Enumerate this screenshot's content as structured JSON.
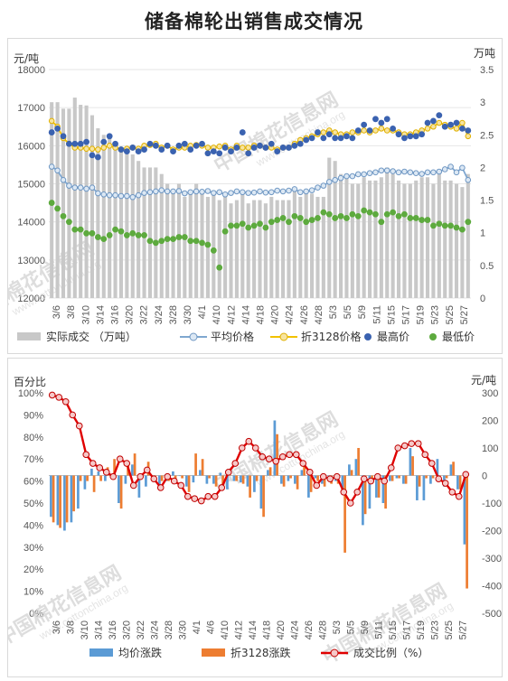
{
  "title": "储备棉轮出销售成交情况",
  "watermark": {
    "cn": "中国棉花信息网",
    "url": "www.cottonchina.org"
  },
  "chart_data": [
    {
      "type": "bar+line",
      "left_unit": "元/吨",
      "right_unit": "万吨",
      "ylim_left": [
        12000,
        18000
      ],
      "ylim_right": [
        0,
        3.5
      ],
      "left_ticks": [
        12000,
        13000,
        14000,
        15000,
        16000,
        17000,
        18000
      ],
      "right_ticks": [
        0,
        0.5,
        1,
        1.5,
        2,
        2.5,
        3,
        3.5
      ],
      "x_ticks": [
        "3/6",
        "3/8",
        "3/10",
        "3/14",
        "3/16",
        "3/20",
        "3/22",
        "3/24",
        "3/28",
        "3/30",
        "4/1",
        "4/10",
        "4/12",
        "4/14",
        "4/18",
        "4/20",
        "4/24",
        "4/26",
        "4/28",
        "5/3",
        "5/5",
        "5/9",
        "5/11",
        "5/15",
        "5/17",
        "5/19",
        "5/23",
        "5/25",
        "5/27"
      ],
      "legend": [
        "实际成交 （万吨）",
        "平均价格",
        "折3128价格",
        "最高价",
        "最低价"
      ],
      "n": 73,
      "volume": [
        3,
        3,
        2.9,
        2.9,
        3.07,
        2.96,
        2.95,
        2.8,
        2.6,
        2.5,
        2.5,
        2.4,
        2.3,
        2.3,
        2.2,
        2.1,
        2.0,
        2.0,
        2.0,
        1.9,
        1.75,
        1.65,
        1.75,
        1.55,
        1.65,
        1.75,
        1.6,
        1.55,
        1.6,
        1.5,
        1.55,
        1.45,
        1.5,
        1.6,
        1.45,
        1.5,
        1.5,
        1.45,
        1.55,
        1.5,
        1.5,
        1.5,
        1.7,
        1.55,
        1.6,
        1.6,
        1.55,
        1.55,
        2.15,
        2.1,
        1.9,
        1.85,
        1.75,
        1.75,
        1.85,
        1.8,
        1.8,
        1.85,
        2.0,
        1.9,
        1.8,
        1.75,
        1.75,
        1.8,
        1.85,
        1.85,
        1.75,
        1.9,
        1.8,
        1.8,
        1.75,
        1.7,
        1.9
      ],
      "avg": [
        15450,
        15350,
        15100,
        14950,
        14900,
        14900,
        14870,
        14900,
        14750,
        14720,
        14700,
        14700,
        14680,
        14680,
        14650,
        14700,
        14760,
        14780,
        14800,
        14830,
        14800,
        14800,
        14810,
        14750,
        14780,
        14800,
        14790,
        14810,
        14760,
        14780,
        14720,
        14760,
        14800,
        14780,
        14760,
        14770,
        14800,
        14770,
        14780,
        14820,
        14800,
        14820,
        14860,
        14780,
        14800,
        14830,
        14900,
        14950,
        15050,
        15100,
        15150,
        15200,
        15200,
        15250,
        15250,
        15280,
        15300,
        15350,
        15350,
        15330,
        15300,
        15320,
        15300,
        15280,
        15260,
        15300,
        15300,
        15320,
        15380,
        15450,
        15300,
        15420,
        15100
      ],
      "p3128": [
        16650,
        16500,
        16200,
        16050,
        15950,
        15950,
        15920,
        15920,
        15900,
        15950,
        16000,
        15950,
        15900,
        15920,
        15950,
        15920,
        16000,
        16020,
        16050,
        15950,
        16000,
        15900,
        15950,
        15950,
        16000,
        16020,
        16000,
        15950,
        15950,
        15980,
        16000,
        15900,
        16000,
        15950,
        15950,
        16000,
        16000,
        15950,
        15950,
        15900,
        15950,
        15950,
        16050,
        16150,
        16200,
        16250,
        16300,
        16350,
        16400,
        16350,
        16300,
        16300,
        16350,
        16350,
        16400,
        16350,
        16400,
        16450,
        16400,
        16400,
        16350,
        16300,
        16300,
        16350,
        16400,
        16450,
        16500,
        16600,
        16550,
        16500,
        16450,
        16600,
        16250
      ],
      "high": [
        16350,
        16450,
        16250,
        16050,
        16050,
        16050,
        16100,
        15750,
        15700,
        16100,
        16250,
        16050,
        15900,
        15850,
        15950,
        15850,
        15900,
        16050,
        16000,
        15900,
        16000,
        15850,
        16000,
        16050,
        15900,
        16000,
        16050,
        15800,
        15850,
        15800,
        15950,
        15850,
        15950,
        16350,
        15800,
        15950,
        16000,
        15950,
        16050,
        15850,
        15950,
        15950,
        16000,
        16050,
        16150,
        16200,
        16350,
        16200,
        16300,
        16200,
        16200,
        16250,
        16200,
        16400,
        16550,
        16400,
        16700,
        16600,
        16700,
        16450,
        16300,
        16200,
        16250,
        16250,
        16300,
        16600,
        16650,
        16800,
        16500,
        16550,
        16600,
        16450,
        16400
      ],
      "low": [
        14500,
        14350,
        14150,
        14000,
        13800,
        13800,
        13700,
        13700,
        13600,
        13550,
        13650,
        13800,
        13750,
        13650,
        13700,
        13650,
        13650,
        13500,
        13450,
        13500,
        13550,
        13550,
        13600,
        13600,
        13500,
        13500,
        13450,
        13400,
        13250,
        12800,
        13750,
        13900,
        13900,
        13950,
        13850,
        13900,
        13950,
        13850,
        14000,
        14050,
        14100,
        14000,
        14150,
        14100,
        14000,
        14050,
        14100,
        14250,
        14200,
        14100,
        14150,
        14100,
        14200,
        14150,
        14300,
        14250,
        14200,
        14000,
        14200,
        14250,
        14150,
        14200,
        14100,
        14100,
        14050,
        14050,
        13900,
        13950,
        13900,
        13900,
        13850,
        13800,
        14000
      ]
    },
    {
      "type": "bar+line",
      "left_unit": "百分比",
      "right_unit": "元/吨",
      "ylim_left": [
        0,
        100
      ],
      "ylim_right": [
        -500,
        300
      ],
      "left_ticks": [
        0,
        10,
        20,
        30,
        40,
        50,
        60,
        70,
        80,
        90,
        100
      ],
      "right_ticks": [
        -500,
        -400,
        -300,
        -200,
        -100,
        0,
        100,
        200,
        300
      ],
      "left_tick_labels": [
        "0%",
        "10%",
        "20%",
        "30%",
        "40%",
        "50%",
        "60%",
        "70%",
        "80%",
        "90%",
        "100%"
      ],
      "x_ticks": [
        "3/6",
        "3/8",
        "3/10",
        "3/14",
        "3/16",
        "3/20",
        "3/22",
        "3/24",
        "3/28",
        "3/30",
        "4/1",
        "4/6",
        "4/10",
        "4/12",
        "4/14",
        "4/18",
        "4/20",
        "4/24",
        "4/26",
        "4/28",
        "5/3",
        "5/5",
        "5/9",
        "5/11",
        "5/15",
        "5/17",
        "5/19",
        "5/23",
        "5/25",
        "5/27"
      ],
      "legend": [
        "均价涨跌",
        "折3128涨跌",
        "成交比例（%）"
      ],
      "n": 62,
      "avg_change": [
        -150,
        -180,
        -200,
        -170,
        -120,
        -50,
        25,
        15,
        -20,
        -10,
        -100,
        -30,
        40,
        -80,
        -40,
        0,
        -50,
        -20,
        15,
        0,
        -40,
        -25,
        20,
        -30,
        -30,
        10,
        -50,
        -20,
        -25,
        -40,
        -60,
        -120,
        20,
        200,
        -30,
        -20,
        -30,
        20,
        -80,
        -10,
        -30,
        -20,
        -20,
        -60,
        40,
        60,
        -180,
        -120,
        -80,
        -100,
        -20,
        -10,
        -30,
        100,
        -90,
        -90,
        -30,
        60,
        -40,
        40,
        -50,
        -250
      ],
      "p3128_change": [
        -170,
        -190,
        -170,
        -130,
        -20,
        -20,
        -60,
        -20,
        30,
        60,
        -120,
        40,
        80,
        0,
        50,
        -10,
        -20,
        -20,
        -30,
        -10,
        -60,
        80,
        60,
        -10,
        -40,
        -40,
        20,
        -20,
        -30,
        -80,
        -20,
        -150,
        30,
        150,
        -40,
        -10,
        -50,
        40,
        -60,
        -20,
        -40,
        -30,
        -30,
        -280,
        20,
        100,
        -140,
        -30,
        -80,
        -120,
        -20,
        -10,
        -30,
        70,
        -40,
        -10,
        -10,
        0,
        -10,
        50,
        -50,
        -410
      ],
      "ratio": [
        99,
        98,
        96,
        90,
        85,
        72,
        68,
        66,
        64,
        62,
        70,
        68,
        58,
        62,
        65,
        61,
        57,
        62,
        60,
        58,
        53,
        52,
        51,
        53,
        53,
        57,
        64,
        68,
        75,
        78,
        75,
        71,
        70,
        69,
        71,
        72,
        72,
        68,
        64,
        58,
        62,
        61,
        62,
        55,
        50,
        55,
        61,
        60,
        62,
        60,
        66,
        75,
        76,
        77,
        77,
        72,
        68,
        61,
        59,
        55,
        53,
        63
      ]
    }
  ]
}
